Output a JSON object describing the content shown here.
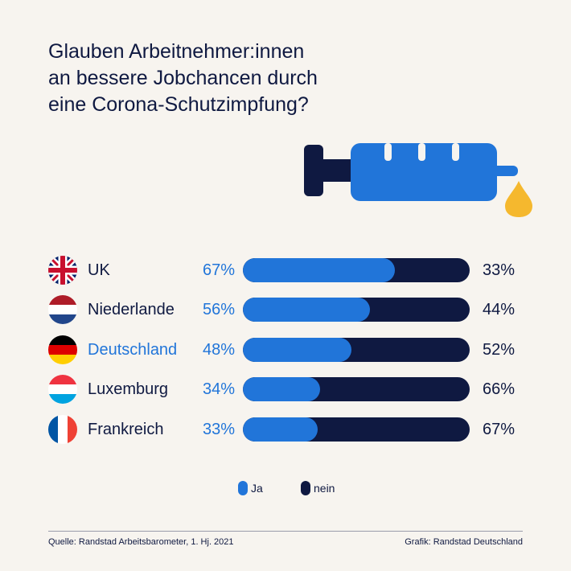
{
  "title_lines": [
    "Glauben Arbeitnehmer:innen",
    "an bessere Jobchancen durch",
    "eine Corona-Schutzimpfung?"
  ],
  "colors": {
    "ja": "#2175d9",
    "nein": "#0f1941",
    "drop": "#f5b82e",
    "background": "#f7f4ef"
  },
  "chart_data": {
    "type": "bar",
    "orientation": "horizontal",
    "stacked": true,
    "categories": [
      "UK",
      "Niederlande",
      "Deutschland",
      "Luxemburg",
      "Frankreich"
    ],
    "series": [
      {
        "name": "Ja",
        "values": [
          67,
          56,
          48,
          34,
          33
        ],
        "labels": [
          "67%",
          "56%",
          "48%",
          "34%",
          "33%"
        ]
      },
      {
        "name": "nein",
        "values": [
          33,
          44,
          52,
          66,
          67
        ],
        "labels": [
          "33%",
          "44%",
          "52%",
          "66%",
          "67%"
        ]
      }
    ],
    "highlighted_category": "Deutschland",
    "legend_position": "bottom-center",
    "grid": false
  },
  "flags": [
    "uk-flag-icon",
    "netherlands-flag-icon",
    "germany-flag-icon",
    "luxembourg-flag-icon",
    "france-flag-icon"
  ],
  "legend": {
    "ja_label": "Ja",
    "nein_label": "nein"
  },
  "footer": {
    "source": "Quelle: Randstad Arbeitsbarometer, 1. Hj. 2021",
    "credit": "Grafik: Randstad Deutschland"
  }
}
